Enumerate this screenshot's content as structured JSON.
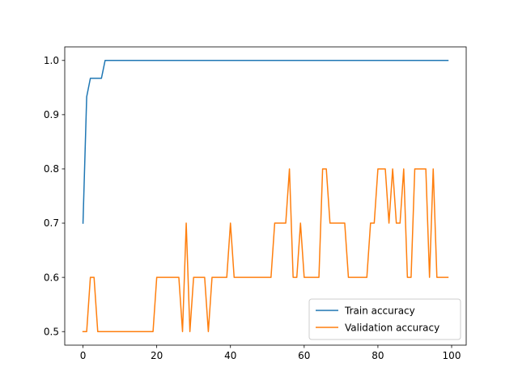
{
  "chart_data": {
    "type": "line",
    "title": "",
    "xlabel": "",
    "ylabel": "",
    "xlim": [
      -4.95,
      103.95
    ],
    "ylim": [
      0.475,
      1.025
    ],
    "xticks": [
      0,
      20,
      40,
      60,
      80,
      100
    ],
    "yticks": [
      0.5,
      0.6,
      0.7,
      0.8,
      0.9,
      1.0
    ],
    "xtick_labels": [
      "0",
      "20",
      "40",
      "60",
      "80",
      "100"
    ],
    "ytick_labels": [
      "0.5",
      "0.6",
      "0.7",
      "0.8",
      "0.9",
      "1.0"
    ],
    "grid": false,
    "legend_position": "lower-right",
    "series": [
      {
        "name": "Train accuracy",
        "color": "#1f77b4",
        "values": [
          0.7,
          0.933,
          0.967,
          0.967,
          0.967,
          0.967,
          1.0,
          1.0,
          1.0,
          1.0,
          1.0,
          1.0,
          1.0,
          1.0,
          1.0,
          1.0,
          1.0,
          1.0,
          1.0,
          1.0,
          1.0,
          1.0,
          1.0,
          1.0,
          1.0,
          1.0,
          1.0,
          1.0,
          1.0,
          1.0,
          1.0,
          1.0,
          1.0,
          1.0,
          1.0,
          1.0,
          1.0,
          1.0,
          1.0,
          1.0,
          1.0,
          1.0,
          1.0,
          1.0,
          1.0,
          1.0,
          1.0,
          1.0,
          1.0,
          1.0,
          1.0,
          1.0,
          1.0,
          1.0,
          1.0,
          1.0,
          1.0,
          1.0,
          1.0,
          1.0,
          1.0,
          1.0,
          1.0,
          1.0,
          1.0,
          1.0,
          1.0,
          1.0,
          1.0,
          1.0,
          1.0,
          1.0,
          1.0,
          1.0,
          1.0,
          1.0,
          1.0,
          1.0,
          1.0,
          1.0,
          1.0,
          1.0,
          1.0,
          1.0,
          1.0,
          1.0,
          1.0,
          1.0,
          1.0,
          1.0,
          1.0,
          1.0,
          1.0,
          1.0,
          1.0,
          1.0,
          1.0,
          1.0,
          1.0,
          1.0
        ]
      },
      {
        "name": "Validation accuracy",
        "color": "#ff7f0e",
        "values": [
          0.5,
          0.5,
          0.6,
          0.6,
          0.5,
          0.5,
          0.5,
          0.5,
          0.5,
          0.5,
          0.5,
          0.5,
          0.5,
          0.5,
          0.5,
          0.5,
          0.5,
          0.5,
          0.5,
          0.5,
          0.6,
          0.6,
          0.6,
          0.6,
          0.6,
          0.6,
          0.6,
          0.5,
          0.7,
          0.5,
          0.6,
          0.6,
          0.6,
          0.6,
          0.5,
          0.6,
          0.6,
          0.6,
          0.6,
          0.6,
          0.7,
          0.6,
          0.6,
          0.6,
          0.6,
          0.6,
          0.6,
          0.6,
          0.6,
          0.6,
          0.6,
          0.6,
          0.7,
          0.7,
          0.7,
          0.7,
          0.8,
          0.6,
          0.6,
          0.7,
          0.6,
          0.6,
          0.6,
          0.6,
          0.6,
          0.8,
          0.8,
          0.7,
          0.7,
          0.7,
          0.7,
          0.7,
          0.6,
          0.6,
          0.6,
          0.6,
          0.6,
          0.6,
          0.7,
          0.7,
          0.8,
          0.8,
          0.8,
          0.7,
          0.8,
          0.7,
          0.7,
          0.8,
          0.6,
          0.6,
          0.8,
          0.8,
          0.8,
          0.8,
          0.6,
          0.8,
          0.6,
          0.6,
          0.6,
          0.6
        ]
      }
    ]
  }
}
